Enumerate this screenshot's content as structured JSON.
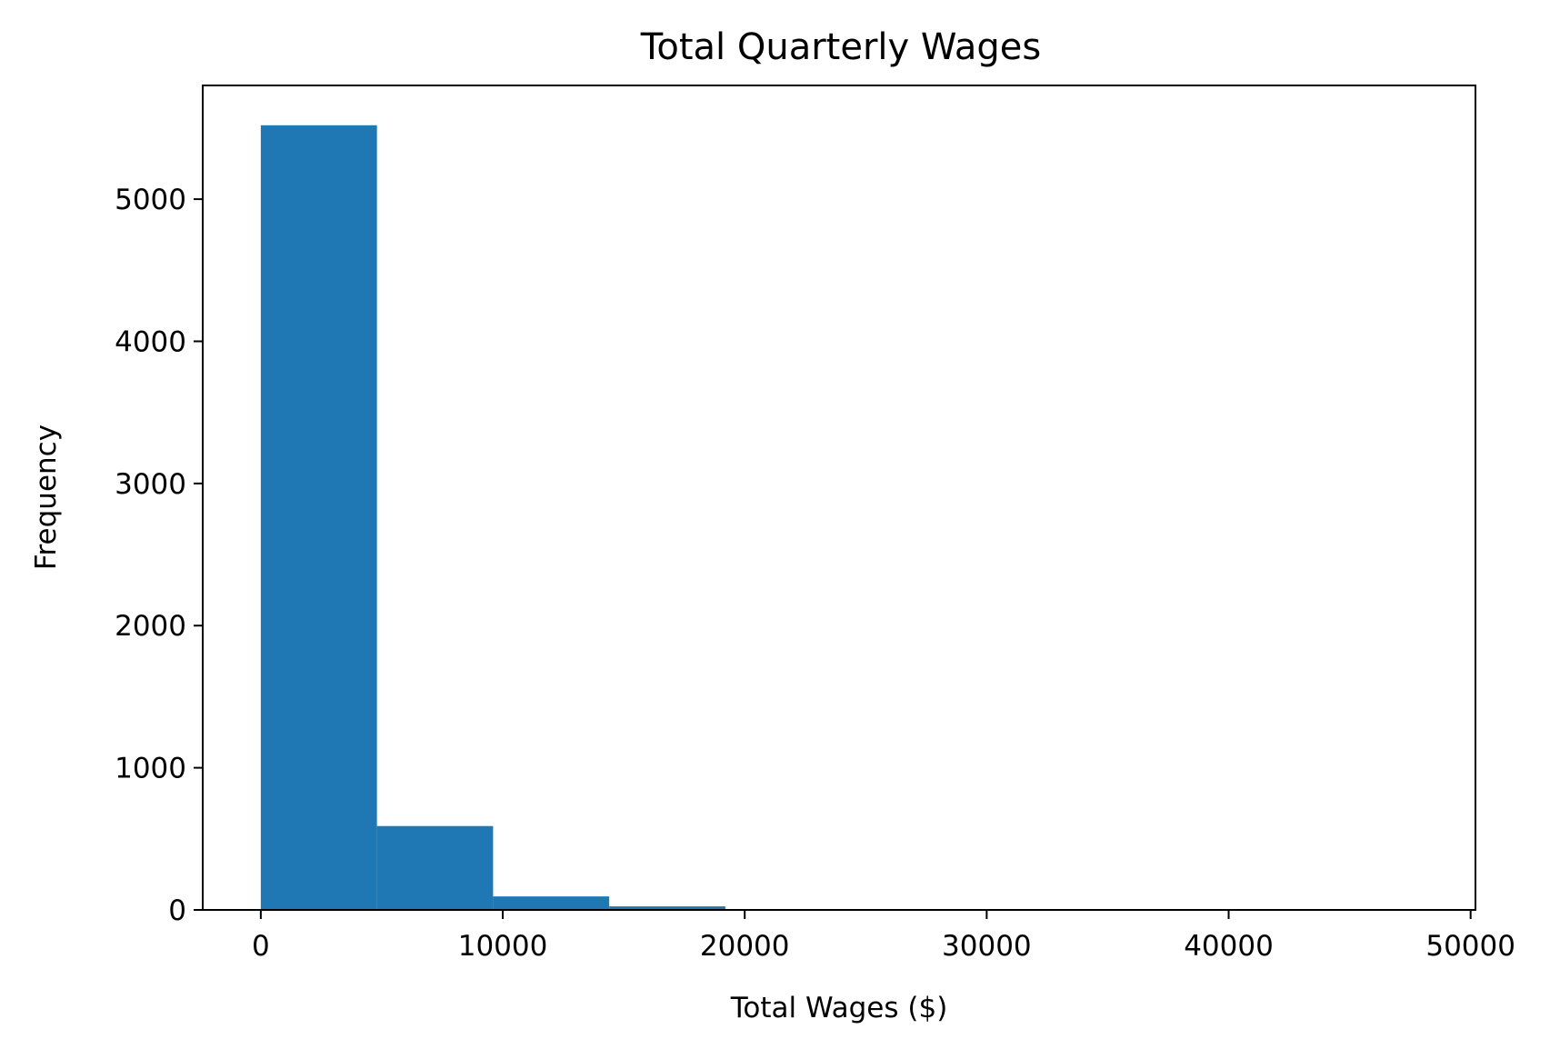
{
  "chart_data": {
    "type": "bar",
    "title": "Total Quarterly Wages",
    "xlabel": "Total Wages ($)",
    "ylabel": "Frequency",
    "xlim": [
      -2400,
      50200
    ],
    "ylim": [
      0,
      5800
    ],
    "xticks": [
      0,
      10000,
      20000,
      30000,
      40000,
      50000
    ],
    "yticks": [
      0,
      1000,
      2000,
      3000,
      4000,
      5000
    ],
    "bins": [
      {
        "x0": 0,
        "x1": 4800,
        "value": 5520
      },
      {
        "x0": 4800,
        "x1": 9600,
        "value": 590
      },
      {
        "x0": 9600,
        "x1": 14400,
        "value": 95
      },
      {
        "x0": 14400,
        "x1": 19200,
        "value": 25
      },
      {
        "x0": 19200,
        "x1": 24000,
        "value": 5
      },
      {
        "x0": 24000,
        "x1": 28800,
        "value": 2
      },
      {
        "x0": 28800,
        "x1": 33600,
        "value": 1
      },
      {
        "x0": 33600,
        "x1": 38400,
        "value": 1
      },
      {
        "x0": 38400,
        "x1": 43200,
        "value": 0
      },
      {
        "x0": 43200,
        "x1": 48000,
        "value": 1
      }
    ],
    "bar_color": "#1f77b4",
    "grid": false,
    "legend": "none"
  }
}
